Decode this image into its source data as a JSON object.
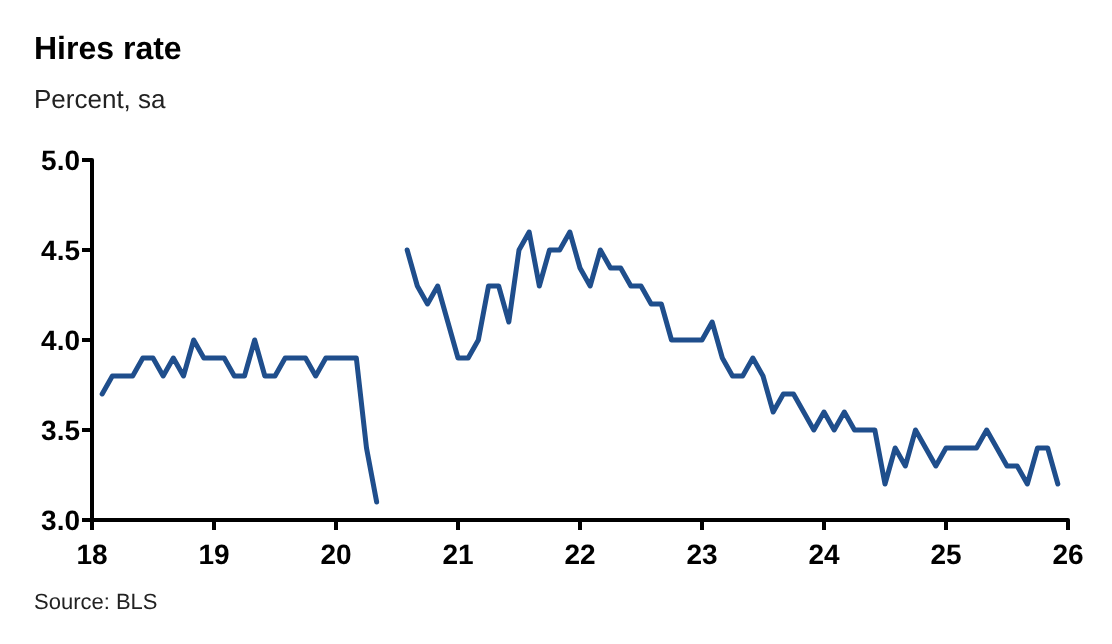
{
  "chart_data": {
    "type": "line",
    "title": "Hires rate",
    "subtitle": "Percent, sa",
    "annotations": [
      "Source: BLS"
    ],
    "x": [
      "2018-02",
      "2018-03",
      "2018-04",
      "2018-05",
      "2018-06",
      "2018-07",
      "2018-08",
      "2018-09",
      "2018-10",
      "2018-11",
      "2018-12",
      "2019-01",
      "2019-02",
      "2019-03",
      "2019-04",
      "2019-05",
      "2019-06",
      "2019-07",
      "2019-08",
      "2019-09",
      "2019-10",
      "2019-11",
      "2019-12",
      "2020-01",
      "2020-02",
      "2020-03",
      "2020-04",
      "2020-05",
      "2020-06",
      "2020-07",
      "2020-08",
      "2020-09",
      "2020-10",
      "2020-11",
      "2020-12",
      "2021-01",
      "2021-02",
      "2021-03",
      "2021-04",
      "2021-05",
      "2021-06",
      "2021-07",
      "2021-08",
      "2021-09",
      "2021-10",
      "2021-11",
      "2021-12",
      "2022-01",
      "2022-02",
      "2022-03",
      "2022-04",
      "2022-05",
      "2022-06",
      "2022-07",
      "2022-08",
      "2022-09",
      "2022-10",
      "2022-11",
      "2022-12",
      "2023-01",
      "2023-02",
      "2023-03",
      "2023-04",
      "2023-05",
      "2023-06",
      "2023-07",
      "2023-08",
      "2023-09",
      "2023-10",
      "2023-11",
      "2023-12",
      "2024-01",
      "2024-02",
      "2024-03",
      "2024-04",
      "2024-05",
      "2024-06",
      "2024-07",
      "2024-08",
      "2024-09",
      "2024-10",
      "2024-11",
      "2024-12",
      "2025-01",
      "2025-02",
      "2025-03",
      "2025-04",
      "2025-05",
      "2025-06",
      "2025-07",
      "2025-08",
      "2025-09",
      "2025-10",
      "2025-11",
      "2025-12"
    ],
    "series": [
      {
        "color": "#1f4e8c",
        "values": [
          3.7,
          3.8,
          3.8,
          3.8,
          3.9,
          3.9,
          3.8,
          3.9,
          3.8,
          4.0,
          3.9,
          3.9,
          3.9,
          3.8,
          3.8,
          4.0,
          3.8,
          3.8,
          3.9,
          3.9,
          3.9,
          3.8,
          3.9,
          3.9,
          3.9,
          3.9,
          3.4,
          3.1,
          null,
          null,
          4.5,
          4.3,
          4.2,
          4.3,
          4.1,
          3.9,
          3.9,
          4.0,
          4.3,
          4.3,
          4.1,
          4.5,
          4.6,
          4.3,
          4.5,
          4.5,
          4.6,
          4.4,
          4.3,
          4.5,
          4.4,
          4.4,
          4.3,
          4.3,
          4.2,
          4.2,
          4.0,
          4.0,
          4.0,
          4.0,
          4.1,
          3.9,
          3.8,
          3.8,
          3.9,
          3.8,
          3.6,
          3.7,
          3.7,
          3.6,
          3.5,
          3.6,
          3.5,
          3.6,
          3.5,
          3.5,
          3.5,
          3.2,
          3.4,
          3.3,
          3.5,
          3.4,
          3.3,
          3.4,
          3.4,
          3.4,
          3.4,
          3.5,
          3.4,
          3.3,
          3.3,
          3.2,
          3.4,
          3.4,
          3.2
        ]
      }
    ],
    "xlim": [
      "2018-01",
      "2026-01"
    ],
    "xticks": [
      {
        "value": "2018-01",
        "label": "18"
      },
      {
        "value": "2019-01",
        "label": "19"
      },
      {
        "value": "2020-01",
        "label": "20"
      },
      {
        "value": "2021-01",
        "label": "21"
      },
      {
        "value": "2022-01",
        "label": "22"
      },
      {
        "value": "2023-01",
        "label": "23"
      },
      {
        "value": "2024-01",
        "label": "24"
      },
      {
        "value": "2025-01",
        "label": "25"
      },
      {
        "value": "2026-01",
        "label": "26"
      }
    ],
    "ylim": [
      3.0,
      5.0
    ],
    "yticks": [
      {
        "value": 3.0,
        "label": "3.0"
      },
      {
        "value": 3.5,
        "label": "3.5"
      },
      {
        "value": 4.0,
        "label": "4.0"
      },
      {
        "value": 4.5,
        "label": "4.5"
      },
      {
        "value": 5.0,
        "label": "5.0"
      }
    ],
    "grid": false,
    "marker": "none",
    "line_style": "solid"
  }
}
